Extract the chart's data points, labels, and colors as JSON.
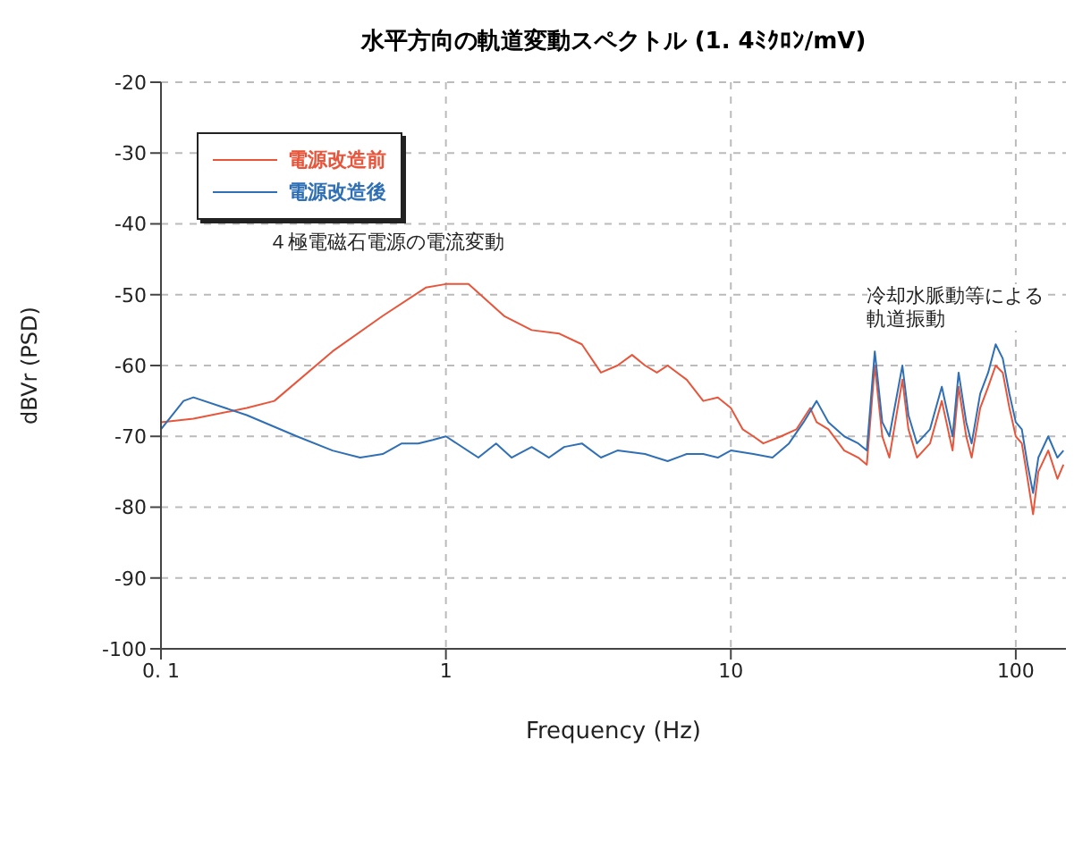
{
  "chart_data": {
    "type": "line",
    "title": "水平方向の軌道変動スペクトル (1. 4ﾐｸﾛﾝ/mV)",
    "xlabel": "Frequency (Hz)",
    "ylabel": "dBVr (PSD)",
    "log": "x",
    "xlim": [
      0.1,
      150
    ],
    "xticks": [
      {
        "value": 0.1,
        "label": "0. 1"
      },
      1,
      10,
      100
    ],
    "ylim": [
      -100,
      -20
    ],
    "yticks": [
      -100,
      -90,
      -80,
      -70,
      -60,
      -50,
      -40,
      -30,
      -20
    ],
    "grid": true,
    "legend": "top left",
    "annotations": [
      "４極電磁石電源の電流変動",
      "冷却水脈動等による軌道振動"
    ],
    "series": [
      {
        "name": "電源改造前",
        "color": "#e8553a",
        "x": [
          0.1,
          0.13,
          0.2,
          0.25,
          0.4,
          0.6,
          0.85,
          1,
          1.2,
          1.6,
          2,
          2.5,
          3,
          3.5,
          4,
          4.5,
          5,
          5.5,
          6,
          7,
          8,
          9,
          10,
          11,
          12,
          13,
          15,
          17,
          19,
          20,
          22,
          25,
          28,
          30,
          32,
          34,
          36,
          40,
          42,
          45,
          50,
          55,
          60,
          63,
          67,
          70,
          75,
          80,
          85,
          90,
          95,
          100,
          105,
          110,
          115,
          120,
          130,
          140,
          147
        ],
        "values": [
          -68,
          -67.5,
          -66,
          -65,
          -58,
          -53,
          -49,
          -48.5,
          -48.5,
          -53,
          -55,
          -55.5,
          -57,
          -61,
          -60,
          -58.5,
          -60,
          -61,
          -60,
          -62,
          -65,
          -64.5,
          -66,
          -69,
          -70,
          -71,
          -70,
          -69,
          -66,
          -68,
          -69,
          -72,
          -73,
          -74,
          -60,
          -70,
          -73,
          -62,
          -69,
          -73,
          -71,
          -65,
          -72,
          -63,
          -70,
          -73,
          -66,
          -63,
          -60,
          -61,
          -66,
          -70,
          -71,
          -76,
          -81,
          -75,
          -72,
          -76,
          -74
        ]
      },
      {
        "name": "電源改造後",
        "color": "#2f6fb5",
        "x": [
          0.1,
          0.12,
          0.13,
          0.2,
          0.3,
          0.4,
          0.5,
          0.6,
          0.7,
          0.8,
          0.9,
          1,
          1.3,
          1.5,
          1.7,
          2,
          2.3,
          2.6,
          3,
          3.5,
          4,
          5,
          6,
          7,
          8,
          9,
          10,
          12,
          14,
          16,
          18,
          20,
          22,
          25,
          28,
          30,
          32,
          34,
          36,
          40,
          42,
          45,
          50,
          55,
          60,
          63,
          67,
          70,
          75,
          80,
          85,
          90,
          95,
          100,
          105,
          110,
          115,
          120,
          130,
          140,
          147
        ],
        "values": [
          -69,
          -65,
          -64.5,
          -67,
          -70,
          -72,
          -73,
          -72.5,
          -71,
          -71,
          -70.5,
          -70,
          -73,
          -71,
          -73,
          -71.5,
          -73,
          -71.5,
          -71,
          -73,
          -72,
          -72.5,
          -73.5,
          -72.5,
          -72.5,
          -73,
          -72,
          -72.5,
          -73,
          -71,
          -68,
          -65,
          -68,
          -70,
          -71,
          -72,
          -58,
          -68,
          -70,
          -60,
          -67,
          -71,
          -69,
          -63,
          -70,
          -61,
          -68,
          -71,
          -64,
          -61,
          -57,
          -59,
          -64,
          -68,
          -69,
          -74,
          -78,
          -73,
          -70,
          -73,
          -72
        ]
      }
    ]
  }
}
